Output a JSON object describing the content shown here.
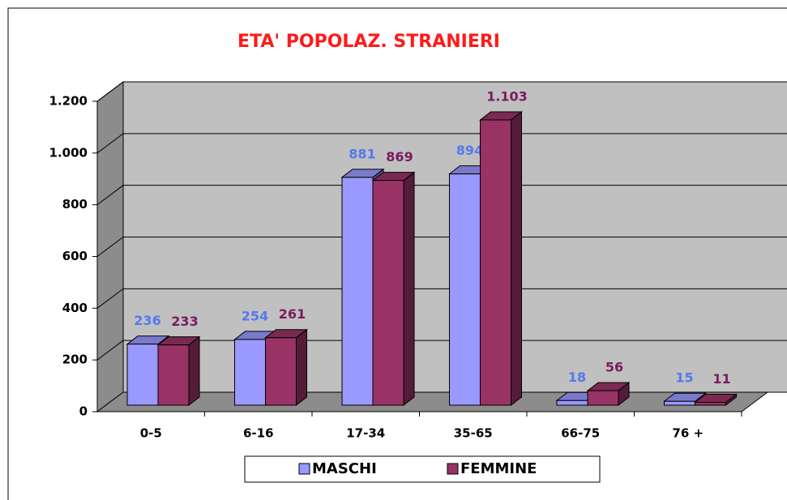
{
  "chart_data": {
    "type": "bar3d",
    "title": "ETA' POPOLAZ. STRANIERI",
    "categories": [
      "0-5",
      "6-16",
      "17-34",
      "35-65",
      "66-75",
      "76 +"
    ],
    "series": [
      {
        "name": "MASCHI",
        "color": "#9999ff",
        "label_color": "#5577ee",
        "values": [
          236,
          254,
          881,
          894,
          18,
          15
        ]
      },
      {
        "name": "FEMMINE",
        "color": "#993366",
        "label_color": "#7a1a60",
        "values": [
          233,
          261,
          869,
          1103,
          56,
          11
        ],
        "value_labels": [
          "233",
          "261",
          "869",
          "1.103",
          "56",
          "11"
        ]
      }
    ],
    "ylim": [
      0,
      1200
    ],
    "yticks": [
      0,
      200,
      400,
      600,
      800,
      {
        "value": 1000,
        "label": "1.000"
      },
      {
        "value": 1200,
        "label": "1.200"
      }
    ],
    "grid": true,
    "legend": "bottom"
  }
}
